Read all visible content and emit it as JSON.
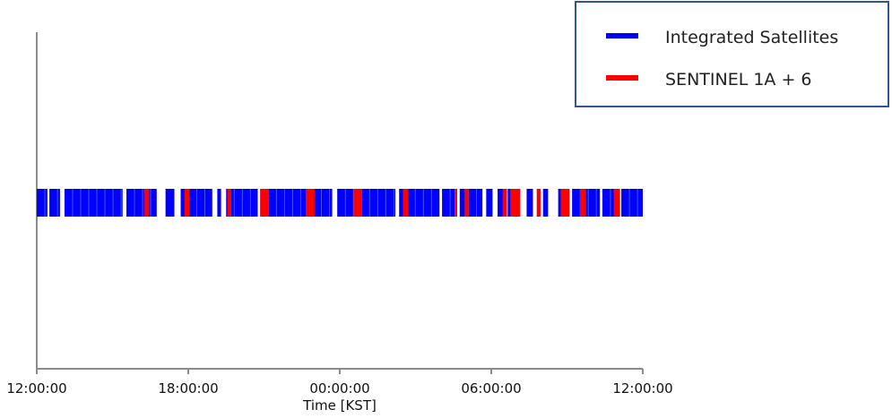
{
  "chart_data": {
    "type": "timeline",
    "xlabel": "Time [KST]",
    "xlim_hours": [
      0,
      24
    ],
    "tick_hours": [
      0,
      6,
      12,
      18,
      24
    ],
    "tick_labels": [
      "12:00:00",
      "18:00:00",
      "00:00:00",
      "06:00:00",
      "12:00:00"
    ],
    "legend_position": "top-right",
    "series": [
      {
        "name": "Integrated Satellites",
        "color": "#0000ff",
        "intervals_hours": [
          [
            0.0,
            0.42
          ],
          [
            0.5,
            0.92
          ],
          [
            1.1,
            3.4
          ],
          [
            3.55,
            4.75
          ],
          [
            5.1,
            5.45
          ],
          [
            5.7,
            6.95
          ],
          [
            7.15,
            7.3
          ],
          [
            7.5,
            8.75
          ],
          [
            8.85,
            10.75
          ],
          [
            10.95,
            11.7
          ],
          [
            11.9,
            14.2
          ],
          [
            14.35,
            15.95
          ],
          [
            16.05,
            16.55
          ],
          [
            16.75,
            16.95
          ],
          [
            17.1,
            17.65
          ],
          [
            17.8,
            18.05
          ],
          [
            18.25,
            18.5
          ],
          [
            18.65,
            19.05
          ],
          [
            19.4,
            19.65
          ],
          [
            20.05,
            20.25
          ],
          [
            20.65,
            21.05
          ],
          [
            21.2,
            22.3
          ],
          [
            22.4,
            23.05
          ],
          [
            23.15,
            24.0
          ]
        ]
      },
      {
        "name": "SENTINEL 1A + 6",
        "color": "#ff0000",
        "intervals_hours": [
          [
            4.25,
            4.45
          ],
          [
            5.85,
            6.05
          ],
          [
            7.55,
            7.7
          ],
          [
            8.85,
            9.2
          ],
          [
            10.65,
            11.0
          ],
          [
            12.55,
            12.85
          ],
          [
            14.5,
            14.72
          ],
          [
            16.55,
            16.65
          ],
          [
            16.95,
            17.1
          ],
          [
            18.45,
            18.62
          ],
          [
            18.75,
            19.15
          ],
          [
            19.8,
            19.95
          ],
          [
            20.75,
            21.1
          ],
          [
            21.55,
            21.75
          ],
          [
            22.85,
            23.1
          ]
        ]
      }
    ]
  }
}
